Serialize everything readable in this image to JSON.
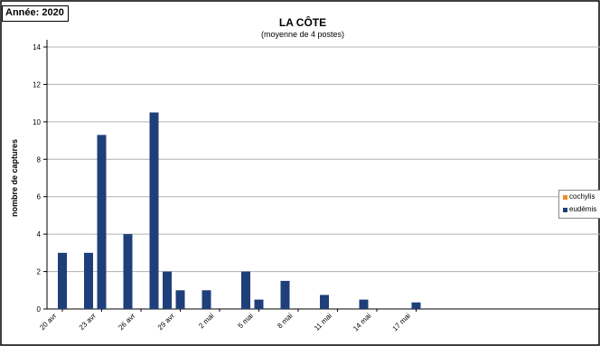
{
  "year_label": "Année: 2020",
  "colors": {
    "cochylis": "#f28c28",
    "eudemis": "#1f3f7a",
    "grid": "#b0b0b0",
    "axis": "#000000"
  },
  "chart_data": {
    "type": "bar",
    "title": "LA CÔTE",
    "subtitle": "(moyenne de 4 postes)",
    "xlabel": "",
    "ylabel": "nombre de captures",
    "ylim": [
      0,
      14
    ],
    "yticks": [
      "0",
      "2",
      "4",
      "6",
      "8",
      "10",
      "12",
      "14"
    ],
    "grid": true,
    "legend_position": "right",
    "x_tick_labels": [
      "20 avr",
      "23 avr",
      "26 avr",
      "29 avr",
      "2 mai",
      "5 mai",
      "8 mai",
      "11 mai",
      "14 mai",
      "17 mai"
    ],
    "categories": [
      "20 avr",
      "21 avr",
      "22 avr",
      "23 avr",
      "24 avr",
      "25 avr",
      "26 avr",
      "27 avr",
      "28 avr",
      "29 avr",
      "30 avr",
      "1 mai",
      "2 mai",
      "3 mai",
      "4 mai",
      "5 mai",
      "6 mai",
      "7 mai",
      "8 mai",
      "9 mai",
      "10 mai",
      "11 mai",
      "12 mai",
      "13 mai",
      "14 mai",
      "15 mai",
      "16 mai",
      "17 mai",
      "18 mai"
    ],
    "series": [
      {
        "name": "cochylis",
        "values": [
          0,
          0,
          0,
          0,
          0,
          0,
          0,
          0,
          0,
          0,
          0,
          0,
          0,
          0,
          0,
          0,
          0,
          0,
          0,
          0,
          0,
          0,
          0,
          0,
          0,
          0,
          0,
          0,
          0
        ]
      },
      {
        "name": "eudémis",
        "values": [
          3,
          0,
          3,
          9.3,
          0,
          4,
          0,
          10.5,
          2,
          1,
          0,
          1,
          0,
          0,
          2,
          0.5,
          0,
          1.5,
          0,
          0,
          0.75,
          0,
          0,
          0.5,
          0,
          0,
          0,
          0.35,
          0
        ],
        "plot_offset": [
          0,
          0,
          0,
          0,
          0,
          0,
          0,
          0,
          0,
          0,
          0,
          0,
          0,
          0,
          0,
          0,
          0,
          0,
          0,
          0,
          0,
          0,
          0,
          0,
          0,
          0,
          0,
          0,
          0
        ]
      }
    ]
  }
}
